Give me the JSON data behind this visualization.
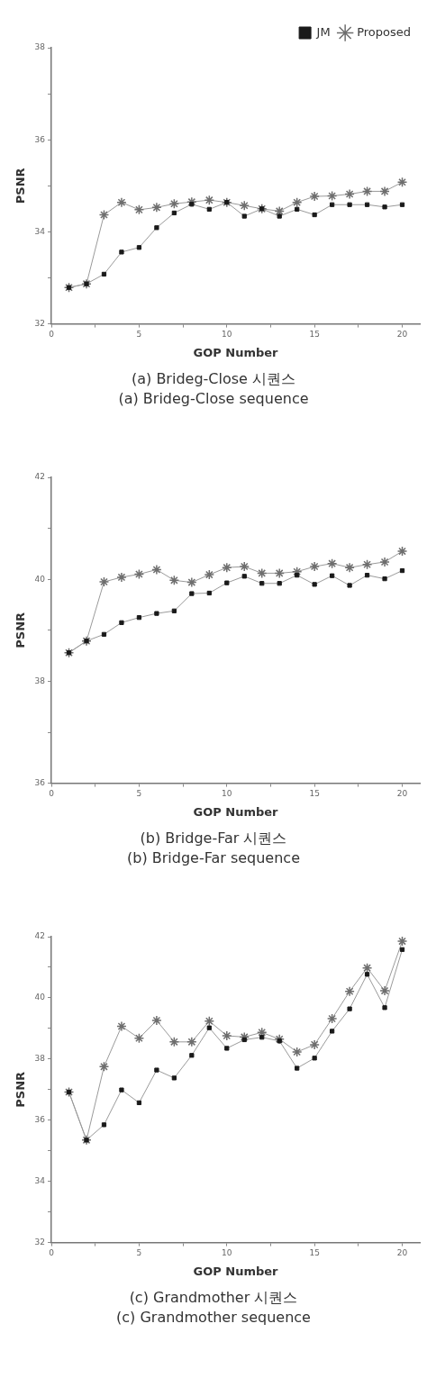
{
  "chart_data": [
    {
      "type": "line",
      "xlabel": "GOP Number",
      "ylabel": "PSNR",
      "legend": "top right",
      "grid": false,
      "annotations": [
        "(a)  Brideg-Close  시퀀스",
        "(a)  Brideg-Close  sequence"
      ],
      "x": [
        1,
        2,
        3,
        4,
        5,
        6,
        7,
        8,
        9,
        10,
        11,
        12,
        13,
        14,
        15,
        16,
        17,
        18,
        19,
        20
      ],
      "xlim": [
        0,
        21
      ],
      "xticks": [
        0,
        {
          "value": 2.5,
          "label": null
        },
        5,
        {
          "value": 7.5,
          "label": null
        },
        10,
        {
          "value": 12.5,
          "label": null
        },
        15,
        {
          "value": 17.5,
          "label": null
        },
        20
      ],
      "ylim": [
        32,
        38
      ],
      "yticks": [
        32,
        {
          "value": 33,
          "label": null
        },
        34,
        {
          "value": 35,
          "label": null
        },
        36,
        {
          "value": 37,
          "label": null
        },
        38
      ],
      "series": [
        {
          "name": "JM",
          "color": "#1a1a1a",
          "marker": "square",
          "values": [
            32.79,
            32.87,
            33.08,
            33.56,
            33.66,
            34.09,
            34.41,
            34.6,
            34.49,
            34.64,
            34.34,
            34.5,
            34.34,
            34.49,
            34.37,
            34.59,
            34.59,
            34.59,
            34.54,
            34.59
          ]
        },
        {
          "name": "Proposed",
          "color": "#6e6e6e",
          "marker": "cross",
          "values": [
            32.79,
            32.87,
            34.37,
            34.64,
            34.48,
            34.53,
            34.61,
            34.65,
            34.69,
            34.64,
            34.57,
            34.5,
            34.45,
            34.64,
            34.77,
            34.78,
            34.82,
            34.88,
            34.88,
            35.08
          ]
        }
      ]
    },
    {
      "type": "line",
      "xlabel": "GOP Number",
      "ylabel": "PSNR",
      "grid": false,
      "annotations": [
        "(b)  Bridge-Far  시퀀스",
        "(b)  Bridge-Far  sequence"
      ],
      "x": [
        1,
        2,
        3,
        4,
        5,
        6,
        7,
        8,
        9,
        10,
        11,
        12,
        13,
        14,
        15,
        16,
        17,
        18,
        19,
        20
      ],
      "xlim": [
        0,
        21
      ],
      "xticks": [
        0,
        {
          "value": 2.5,
          "label": null
        },
        5,
        {
          "value": 7.5,
          "label": null
        },
        10,
        {
          "value": 12.5,
          "label": null
        },
        15,
        {
          "value": 17.5,
          "label": null
        },
        20
      ],
      "ylim": [
        36,
        42
      ],
      "yticks": [
        36,
        {
          "value": 37,
          "label": null
        },
        38,
        {
          "value": 39,
          "label": null
        },
        40,
        {
          "value": 41,
          "label": null
        },
        42
      ],
      "series": [
        {
          "color": "#1a1a1a",
          "marker": "square",
          "values": [
            38.56,
            38.79,
            38.92,
            39.15,
            39.25,
            39.33,
            39.38,
            39.72,
            39.73,
            39.93,
            40.06,
            39.92,
            39.92,
            40.08,
            39.9,
            40.07,
            39.88,
            40.08,
            40.01,
            40.17
          ]
        },
        {
          "color": "#6e6e6e",
          "marker": "cross",
          "values": [
            38.56,
            38.79,
            39.95,
            40.04,
            40.1,
            40.19,
            39.98,
            39.94,
            40.09,
            40.23,
            40.25,
            40.12,
            40.12,
            40.15,
            40.25,
            40.31,
            40.23,
            40.29,
            40.34,
            40.55
          ]
        }
      ]
    },
    {
      "type": "line",
      "xlabel": "GOP Number",
      "ylabel": "PSNR",
      "grid": false,
      "annotations": [
        "(c)  Grandmother  시퀀스",
        "(c)  Grandmother  sequence"
      ],
      "x": [
        1,
        2,
        3,
        4,
        5,
        6,
        7,
        8,
        9,
        10,
        11,
        12,
        13,
        14,
        15,
        16,
        17,
        18,
        19,
        20
      ],
      "xlim": [
        0,
        21
      ],
      "xticks": [
        0,
        {
          "value": 2.5,
          "label": null
        },
        5,
        {
          "value": 7.5,
          "label": null
        },
        10,
        {
          "value": 12.5,
          "label": null
        },
        15,
        {
          "value": 17.5,
          "label": null
        },
        20
      ],
      "ylim": [
        32,
        42
      ],
      "yticks": [
        32,
        {
          "value": 33,
          "label": null
        },
        34,
        {
          "value": 35,
          "label": null
        },
        36,
        {
          "value": 37,
          "label": null
        },
        38,
        {
          "value": 39,
          "label": null
        },
        40,
        {
          "value": 41,
          "label": null
        },
        42
      ],
      "series": [
        {
          "color": "#1a1a1a",
          "marker": "square",
          "values": [
            36.92,
            35.35,
            35.85,
            36.99,
            36.57,
            37.64,
            37.38,
            38.12,
            39.02,
            38.35,
            38.63,
            38.71,
            38.59,
            37.7,
            38.03,
            38.91,
            39.64,
            40.77,
            39.68,
            41.58
          ]
        },
        {
          "color": "#6e6e6e",
          "marker": "cross",
          "values": [
            36.92,
            35.35,
            37.75,
            39.07,
            38.68,
            39.26,
            38.56,
            38.56,
            39.24,
            38.76,
            38.72,
            38.87,
            38.65,
            38.23,
            38.47,
            39.32,
            40.21,
            40.98,
            40.23,
            41.85
          ]
        }
      ]
    }
  ]
}
